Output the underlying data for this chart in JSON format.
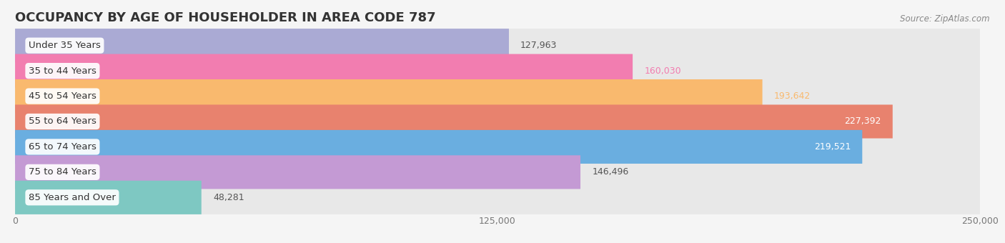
{
  "title": "OCCUPANCY BY AGE OF HOUSEHOLDER IN AREA CODE 787",
  "source": "Source: ZipAtlas.com",
  "categories": [
    "Under 35 Years",
    "35 to 44 Years",
    "45 to 54 Years",
    "55 to 64 Years",
    "65 to 74 Years",
    "75 to 84 Years",
    "85 Years and Over"
  ],
  "values": [
    127963,
    160030,
    193642,
    227392,
    219521,
    146496,
    48281
  ],
  "bar_colors": [
    "#aaaad4",
    "#f27db0",
    "#f9b96e",
    "#e8826e",
    "#6aaee0",
    "#c49ad4",
    "#7ec8c2"
  ],
  "value_label_colors": [
    "#555555",
    "#f27db0",
    "#f9b96e",
    "#e8826e",
    "#6aaee0",
    "#555555",
    "#555555"
  ],
  "value_inside": [
    false,
    false,
    false,
    true,
    true,
    false,
    false
  ],
  "xlim": [
    0,
    250000
  ],
  "xticks": [
    0,
    125000,
    250000
  ],
  "xtick_labels": [
    "0",
    "125,000",
    "250,000"
  ],
  "background_color": "#f5f5f5",
  "bar_bg_color": "#e8e8e8",
  "title_fontsize": 13,
  "label_fontsize": 9.5,
  "value_fontsize": 9
}
